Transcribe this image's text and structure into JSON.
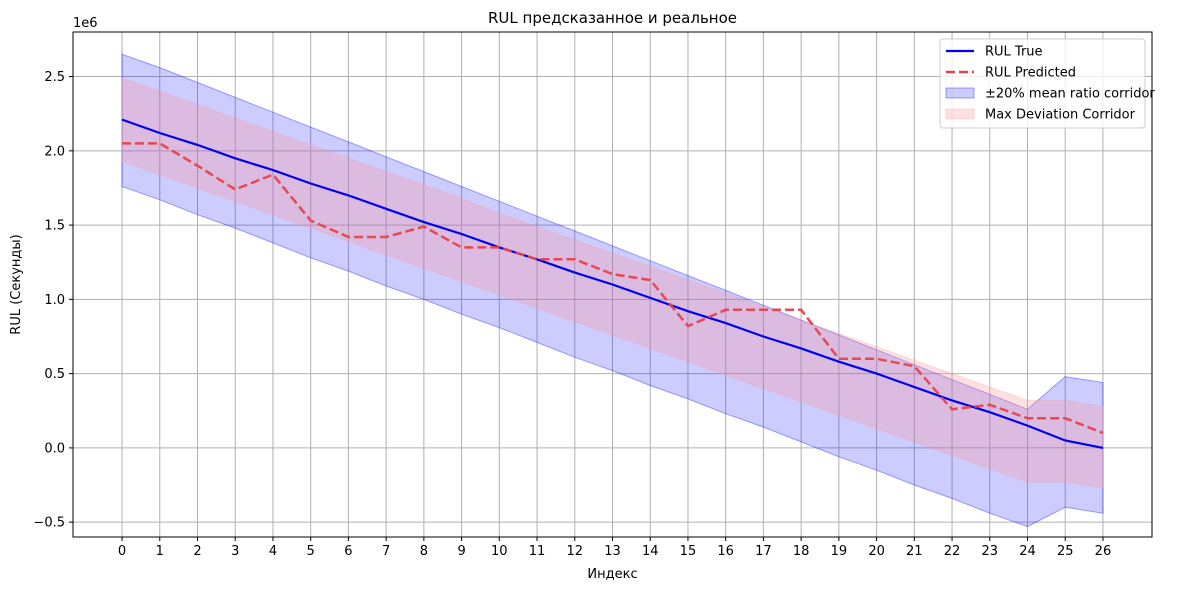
{
  "chart_data": {
    "type": "line",
    "title": "RUL предсказанное и реальное",
    "xlabel": "Индекс",
    "ylabel": "RUL (Секунды)",
    "y_offset_text": "1e6",
    "x": [
      0,
      1,
      2,
      3,
      4,
      5,
      6,
      7,
      8,
      9,
      10,
      11,
      12,
      13,
      14,
      15,
      16,
      17,
      18,
      19,
      20,
      21,
      22,
      23,
      24,
      25,
      26
    ],
    "xlim": [
      -1.3,
      27.3
    ],
    "ylim": [
      -0.6,
      2.8
    ],
    "x_ticks": [
      "0",
      "1",
      "2",
      "3",
      "4",
      "5",
      "6",
      "7",
      "8",
      "9",
      "10",
      "11",
      "12",
      "13",
      "14",
      "15",
      "16",
      "17",
      "18",
      "19",
      "20",
      "21",
      "22",
      "23",
      "24",
      "25",
      "26"
    ],
    "y_ticks": [
      {
        "value": -0.5,
        "label": "−0.5"
      },
      {
        "value": 0.0,
        "label": "0.0"
      },
      {
        "value": 0.5,
        "label": "0.5"
      },
      {
        "value": 1.0,
        "label": "1.0"
      },
      {
        "value": 1.5,
        "label": "1.5"
      },
      {
        "value": 2.0,
        "label": "2.0"
      },
      {
        "value": 2.5,
        "label": "2.5"
      }
    ],
    "grid": true,
    "legend_position": "top-right",
    "series": [
      {
        "name": "RUL True",
        "kind": "line",
        "color": "#0000ee",
        "style": "solid",
        "values": [
          2.21,
          2.12,
          2.04,
          1.95,
          1.87,
          1.78,
          1.7,
          1.61,
          1.52,
          1.44,
          1.35,
          1.27,
          1.18,
          1.1,
          1.01,
          0.92,
          0.84,
          0.75,
          0.67,
          0.58,
          0.5,
          0.41,
          0.32,
          0.24,
          0.15,
          0.05,
          0.0
        ]
      },
      {
        "name": "RUL Predicted",
        "kind": "line",
        "color": "#e8414a",
        "style": "dashed",
        "values": [
          2.05,
          2.05,
          1.9,
          1.74,
          1.84,
          1.53,
          1.42,
          1.42,
          1.49,
          1.35,
          1.35,
          1.27,
          1.27,
          1.17,
          1.13,
          0.82,
          0.93,
          0.93,
          0.93,
          0.6,
          0.6,
          0.55,
          0.26,
          0.29,
          0.2,
          0.2,
          0.1
        ]
      },
      {
        "name": "±20% mean ratio corridor",
        "kind": "band",
        "color": "#0000ff",
        "upper": [
          2.65,
          2.56,
          2.46,
          2.36,
          2.26,
          2.16,
          2.06,
          1.96,
          1.86,
          1.76,
          1.66,
          1.56,
          1.46,
          1.36,
          1.26,
          1.16,
          1.06,
          0.96,
          0.86,
          0.76,
          0.66,
          0.56,
          0.46,
          0.36,
          0.26,
          0.48,
          0.44
        ],
        "lower": [
          1.76,
          1.67,
          1.57,
          1.48,
          1.38,
          1.28,
          1.19,
          1.09,
          1.0,
          0.9,
          0.81,
          0.71,
          0.61,
          0.52,
          0.42,
          0.33,
          0.23,
          0.14,
          0.04,
          -0.06,
          -0.15,
          -0.25,
          -0.34,
          -0.44,
          -0.53,
          -0.4,
          -0.44
        ]
      },
      {
        "name": "Max Deviation Corridor",
        "kind": "band",
        "color": "#ff9999",
        "upper": [
          2.49,
          2.4,
          2.31,
          2.22,
          2.13,
          2.04,
          1.95,
          1.86,
          1.77,
          1.68,
          1.58,
          1.49,
          1.4,
          1.31,
          1.22,
          1.13,
          1.04,
          0.95,
          0.86,
          0.77,
          0.68,
          0.59,
          0.5,
          0.41,
          0.32,
          0.32,
          0.28
        ],
        "lower": [
          1.93,
          1.84,
          1.75,
          1.66,
          1.57,
          1.48,
          1.39,
          1.3,
          1.21,
          1.12,
          1.03,
          0.94,
          0.85,
          0.76,
          0.67,
          0.58,
          0.49,
          0.4,
          0.31,
          0.22,
          0.13,
          0.04,
          -0.05,
          -0.14,
          -0.23,
          -0.23,
          -0.27
        ]
      }
    ]
  }
}
